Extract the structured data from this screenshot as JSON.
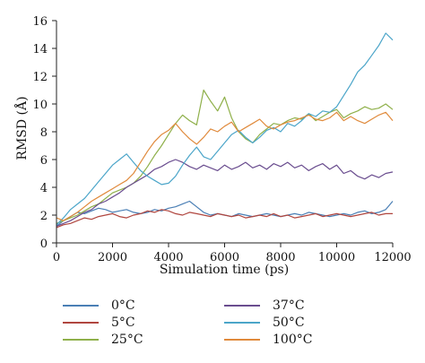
{
  "chart_data": {
    "type": "line",
    "xlabel": "Simulation time (ps)",
    "ylabel": "RMSD (Å)",
    "xlim": [
      0,
      12000
    ],
    "ylim": [
      0,
      16
    ],
    "xticks": [
      0,
      2000,
      4000,
      6000,
      8000,
      10000,
      12000
    ],
    "yticks": [
      0,
      2,
      4,
      6,
      8,
      10,
      12,
      14,
      16
    ],
    "grid": false,
    "legend_position": "bottom",
    "series": [
      {
        "name": "0°C",
        "color": "#4a7fb5",
        "x": [
          0,
          250,
          500,
          750,
          1000,
          1250,
          1500,
          1750,
          2000,
          2250,
          2500,
          2750,
          3000,
          3250,
          3500,
          3750,
          4000,
          4250,
          4500,
          4750,
          5000,
          5250,
          5500,
          5750,
          6000,
          6250,
          6500,
          6750,
          7000,
          7250,
          7500,
          7750,
          8000,
          8250,
          8500,
          8750,
          9000,
          9250,
          9500,
          9750,
          10000,
          10250,
          10500,
          10750,
          11000,
          11250,
          11500,
          11750,
          12000
        ],
        "y": [
          1.2,
          1.6,
          1.9,
          2.2,
          2.1,
          2.3,
          2.5,
          2.4,
          2.2,
          2.3,
          2.4,
          2.2,
          2.1,
          2.2,
          2.4,
          2.3,
          2.5,
          2.6,
          2.8,
          3.0,
          2.6,
          2.2,
          2.0,
          2.1,
          2.0,
          1.9,
          2.1,
          2.0,
          1.9,
          2.0,
          2.1,
          2.0,
          1.9,
          2.0,
          2.1,
          2.0,
          2.2,
          2.1,
          2.0,
          1.9,
          2.0,
          2.1,
          2.0,
          2.2,
          2.3,
          2.1,
          2.2,
          2.4,
          3.0
        ]
      },
      {
        "name": "5°C",
        "color": "#b0463f",
        "x": [
          0,
          250,
          500,
          750,
          1000,
          1250,
          1500,
          1750,
          2000,
          2250,
          2500,
          2750,
          3000,
          3250,
          3500,
          3750,
          4000,
          4250,
          4500,
          4750,
          5000,
          5250,
          5500,
          5750,
          6000,
          6250,
          6500,
          6750,
          7000,
          7250,
          7500,
          7750,
          8000,
          8250,
          8500,
          8750,
          9000,
          9250,
          9500,
          9750,
          10000,
          10250,
          10500,
          10750,
          11000,
          11250,
          11500,
          11750,
          12000
        ],
        "y": [
          1.1,
          1.3,
          1.4,
          1.6,
          1.8,
          1.7,
          1.9,
          2.0,
          2.1,
          1.9,
          1.8,
          2.0,
          2.1,
          2.3,
          2.2,
          2.4,
          2.3,
          2.1,
          2.0,
          2.2,
          2.1,
          2.0,
          1.9,
          2.1,
          2.0,
          1.9,
          2.0,
          1.8,
          1.9,
          2.0,
          1.9,
          2.1,
          1.9,
          2.0,
          1.8,
          1.9,
          2.0,
          2.1,
          1.9,
          2.0,
          2.1,
          2.0,
          1.9,
          2.0,
          2.1,
          2.2,
          2.0,
          2.1,
          2.1
        ]
      },
      {
        "name": "25°C",
        "color": "#8fb04a",
        "x": [
          0,
          250,
          500,
          750,
          1000,
          1250,
          1500,
          1750,
          2000,
          2250,
          2500,
          2750,
          3000,
          3250,
          3500,
          3750,
          4000,
          4250,
          4500,
          4750,
          5000,
          5250,
          5500,
          5750,
          6000,
          6250,
          6500,
          6750,
          7000,
          7250,
          7500,
          7750,
          8000,
          8250,
          8500,
          8750,
          9000,
          9250,
          9500,
          9750,
          10000,
          10250,
          10500,
          10750,
          11000,
          11250,
          11500,
          11750,
          12000
        ],
        "y": [
          1.4,
          1.6,
          1.8,
          2.0,
          2.3,
          2.6,
          2.8,
          3.2,
          3.6,
          3.8,
          4.0,
          4.3,
          4.8,
          5.5,
          6.3,
          7.0,
          7.8,
          8.6,
          9.2,
          8.8,
          8.5,
          11.0,
          10.2,
          9.5,
          10.5,
          9.0,
          8.0,
          7.5,
          7.2,
          7.8,
          8.2,
          8.6,
          8.5,
          8.8,
          9.0,
          8.9,
          9.3,
          8.8,
          9.1,
          9.4,
          9.6,
          9.0,
          9.3,
          9.5,
          9.8,
          9.6,
          9.7,
          10.0,
          9.6
        ]
      },
      {
        "name": "37°C",
        "color": "#6a4d8f",
        "x": [
          0,
          250,
          500,
          750,
          1000,
          1250,
          1500,
          1750,
          2000,
          2250,
          2500,
          2750,
          3000,
          3250,
          3500,
          3750,
          4000,
          4250,
          4500,
          4750,
          5000,
          5250,
          5500,
          5750,
          6000,
          6250,
          6500,
          6750,
          7000,
          7250,
          7500,
          7750,
          8000,
          8250,
          8500,
          8750,
          9000,
          9250,
          9500,
          9750,
          10000,
          10250,
          10500,
          10750,
          11000,
          11250,
          11500,
          11750,
          12000
        ],
        "y": [
          1.2,
          1.4,
          1.6,
          1.9,
          2.2,
          2.4,
          2.8,
          3.0,
          3.3,
          3.6,
          4.0,
          4.3,
          4.6,
          4.9,
          5.3,
          5.5,
          5.8,
          6.0,
          5.8,
          5.5,
          5.3,
          5.6,
          5.4,
          5.2,
          5.6,
          5.3,
          5.5,
          5.8,
          5.4,
          5.6,
          5.3,
          5.7,
          5.5,
          5.8,
          5.4,
          5.6,
          5.2,
          5.5,
          5.7,
          5.3,
          5.6,
          5.0,
          5.2,
          4.8,
          4.6,
          4.9,
          4.7,
          5.0,
          5.1
        ]
      },
      {
        "name": "50°C",
        "color": "#4ba5c9",
        "x": [
          0,
          250,
          500,
          750,
          1000,
          1250,
          1500,
          1750,
          2000,
          2250,
          2500,
          2750,
          3000,
          3250,
          3500,
          3750,
          4000,
          4250,
          4500,
          4750,
          5000,
          5250,
          5500,
          5750,
          6000,
          6250,
          6500,
          6750,
          7000,
          7250,
          7500,
          7750,
          8000,
          8250,
          8500,
          8750,
          9000,
          9250,
          9500,
          9750,
          10000,
          10250,
          10500,
          10750,
          11000,
          11250,
          11500,
          11750,
          12000
        ],
        "y": [
          1.3,
          1.8,
          2.4,
          2.8,
          3.2,
          3.8,
          4.4,
          5.0,
          5.6,
          6.0,
          6.4,
          5.8,
          5.2,
          4.8,
          4.5,
          4.2,
          4.3,
          4.8,
          5.6,
          6.3,
          6.9,
          6.2,
          6.0,
          6.6,
          7.2,
          7.8,
          8.1,
          7.6,
          7.2,
          7.6,
          8.1,
          8.3,
          8.0,
          8.6,
          8.4,
          8.8,
          9.3,
          9.1,
          9.5,
          9.4,
          9.8,
          10.6,
          11.4,
          12.3,
          12.8,
          13.5,
          14.2,
          15.1,
          14.6
        ]
      },
      {
        "name": "100°C",
        "color": "#e08a3c",
        "x": [
          0,
          250,
          500,
          750,
          1000,
          1250,
          1500,
          1750,
          2000,
          2250,
          2500,
          2750,
          3000,
          3250,
          3500,
          3750,
          4000,
          4250,
          4500,
          4750,
          5000,
          5250,
          5500,
          5750,
          6000,
          6250,
          6500,
          6750,
          7000,
          7250,
          7500,
          7750,
          8000,
          8250,
          8500,
          8750,
          9000,
          9250,
          9500,
          9750,
          10000,
          10250,
          10500,
          10750,
          11000,
          11250,
          11500,
          11750,
          12000
        ],
        "y": [
          1.8,
          1.6,
          1.9,
          2.2,
          2.6,
          3.0,
          3.3,
          3.6,
          3.9,
          4.2,
          4.5,
          5.0,
          5.8,
          6.6,
          7.3,
          7.8,
          8.1,
          8.6,
          8.0,
          7.5,
          7.1,
          7.6,
          8.2,
          8.0,
          8.4,
          8.7,
          8.0,
          8.3,
          8.6,
          8.9,
          8.4,
          8.2,
          8.5,
          8.7,
          8.8,
          9.0,
          9.2,
          8.9,
          8.8,
          9.0,
          9.4,
          8.8,
          9.1,
          8.8,
          8.6,
          8.9,
          9.2,
          9.4,
          8.8
        ]
      }
    ]
  }
}
